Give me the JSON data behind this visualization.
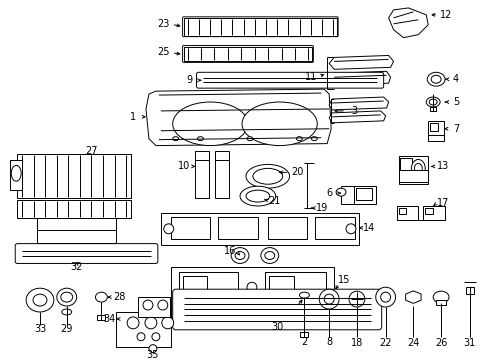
{
  "bg_color": "#ffffff",
  "line_color": "#000000",
  "label_color": "#000000",
  "lw": 0.7,
  "fs": 7.0
}
